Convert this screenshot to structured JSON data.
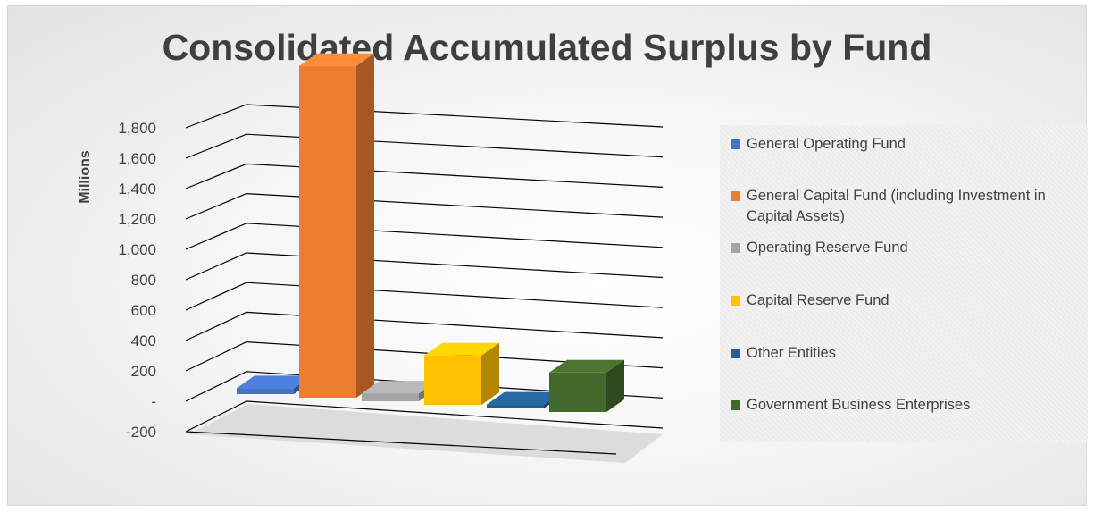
{
  "chart_data": {
    "type": "bar",
    "style": "3d-column",
    "title": "Consolidated Accumulated Surplus by Fund",
    "ylabel": "Millions",
    "xlabel": "",
    "ylim": [
      -200,
      1800
    ],
    "yticks": [
      "-200",
      "-",
      "200",
      "400",
      "600",
      "800",
      "1,000",
      "1,200",
      "1,400",
      "1,600",
      "1,800"
    ],
    "grid": true,
    "legend_position": "right",
    "series": [
      {
        "name": "General Operating Fund",
        "value": 30,
        "color": "#4472c4"
      },
      {
        "name": "General Capital Fund (including Investment in Capital Assets)",
        "value": 1680,
        "color": "#ed7d31"
      },
      {
        "name": "Operating Reserve Fund",
        "value": 40,
        "color": "#a5a5a5"
      },
      {
        "name": "Capital Reserve Fund",
        "value": 250,
        "color": "#ffc000"
      },
      {
        "name": "Other Entities",
        "value": 20,
        "color": "#255e91"
      },
      {
        "name": "Government Business Enterprises",
        "value": 200,
        "color": "#43682b"
      }
    ]
  }
}
